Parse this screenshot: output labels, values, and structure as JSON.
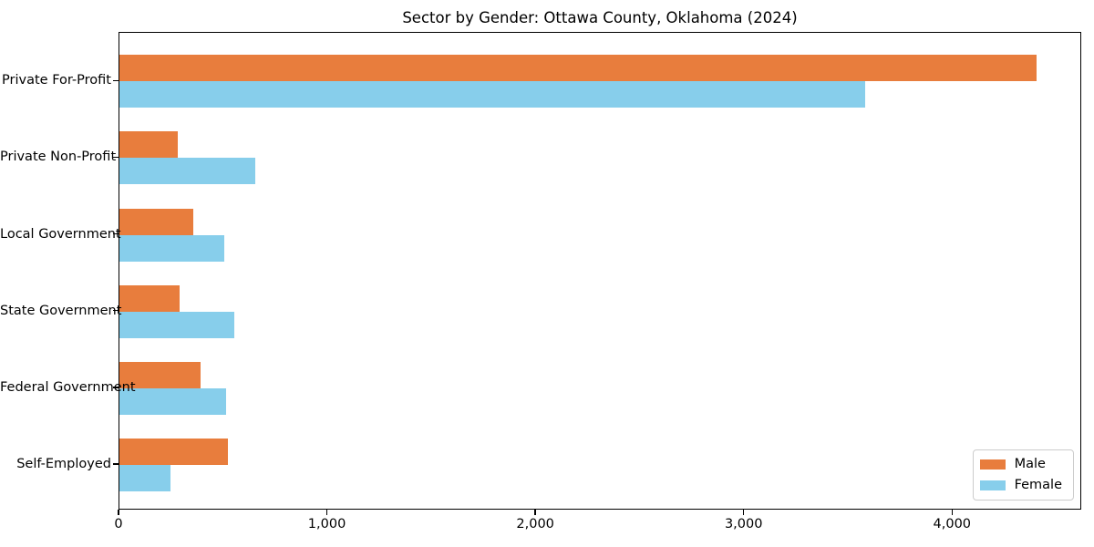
{
  "chart_data": {
    "type": "bar",
    "orientation": "horizontal",
    "title": "Sector by Gender: Ottawa County, Oklahoma (2024)",
    "xlabel": "",
    "ylabel": "",
    "categories": [
      "Private For-Profit",
      "Private Non-Profit",
      "Local Government",
      "State Government",
      "Federal Government",
      "Self-Employed"
    ],
    "series": [
      {
        "name": "Male",
        "color": "#e87d3d",
        "values": [
          4400,
          280,
          355,
          290,
          390,
          520
        ]
      },
      {
        "name": "Female",
        "color": "#87ceeb",
        "values": [
          3580,
          650,
          505,
          550,
          510,
          245
        ]
      }
    ],
    "xlim": [
      0,
      4620
    ],
    "xticks": [
      0,
      1000,
      2000,
      3000,
      4000
    ],
    "xtick_labels": [
      "0",
      "1,000",
      "2,000",
      "3,000",
      "4,000"
    ],
    "grid": false,
    "legend_position": "lower right",
    "background_color": "#ffffff",
    "spine_color": "#000000"
  }
}
